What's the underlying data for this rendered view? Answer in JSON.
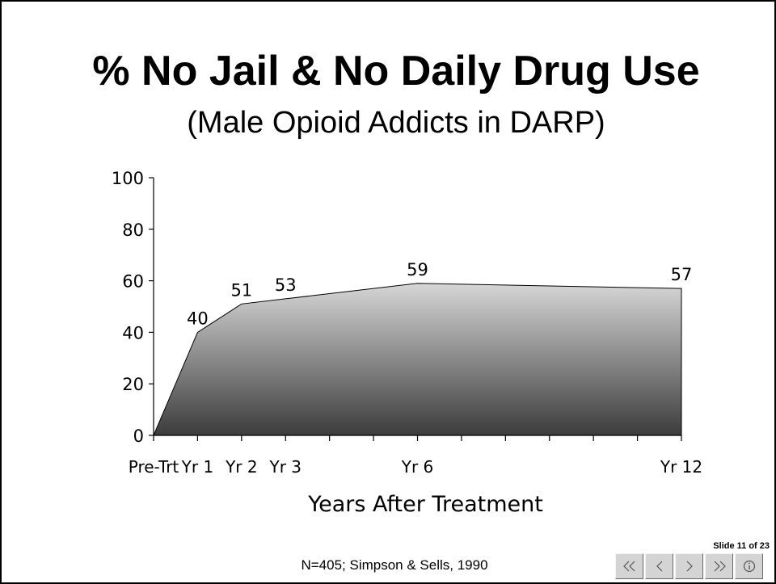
{
  "slide": {
    "title": "% No Jail & No Daily Drug Use",
    "subtitle": "(Male Opioid Addicts in DARP)",
    "footnote": "N=405; Simpson & Sells, 1990",
    "counter": "Slide 11 of 23"
  },
  "nav": {
    "buttons": [
      {
        "name": "first-slide-button",
        "icon": "double-left-arrow-icon"
      },
      {
        "name": "previous-slide-button",
        "icon": "left-arrow-icon"
      },
      {
        "name": "next-slide-button",
        "icon": "right-arrow-icon"
      },
      {
        "name": "last-slide-button",
        "icon": "double-right-arrow-icon"
      },
      {
        "name": "info-button",
        "icon": "info-icon"
      }
    ]
  },
  "chart_data": {
    "type": "area",
    "x": [
      0,
      1,
      2,
      3,
      6,
      12
    ],
    "x_tick_labels": [
      "Pre-Trt",
      "Yr 1",
      "Yr 2",
      "Yr 3",
      "Yr 6",
      "Yr 12"
    ],
    "values": [
      0,
      40,
      51,
      53,
      59,
      57
    ],
    "data_labels": [
      "",
      "40",
      "51",
      "53",
      "59",
      "57"
    ],
    "xlabel": "Years After Treatment",
    "ylabel": "",
    "ylim": [
      0,
      100
    ],
    "yticks": [
      0,
      20,
      40,
      60,
      80,
      100
    ],
    "grid": false,
    "legend": "none",
    "fill_gradient": [
      "#d6d6d6",
      "#3c3c3c"
    ]
  }
}
